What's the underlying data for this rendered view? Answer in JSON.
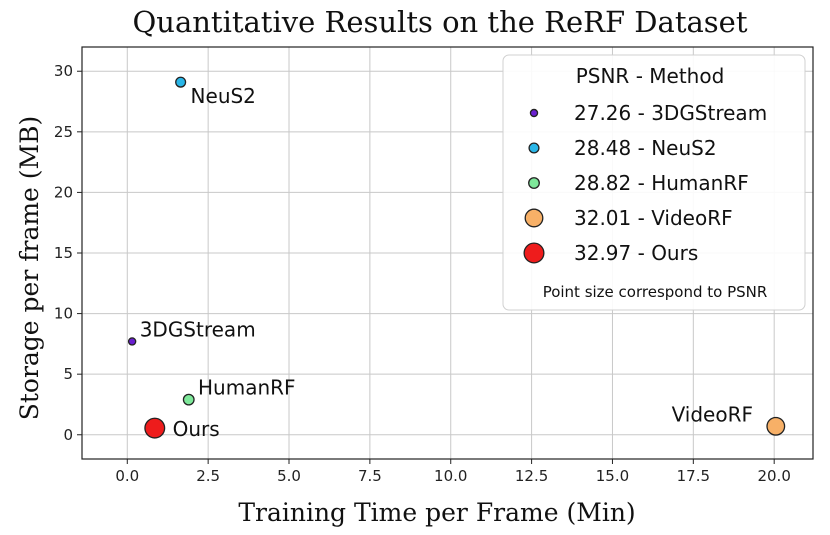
{
  "chart_data": {
    "type": "scatter",
    "title": "Quantitative Results on the ReRF Dataset",
    "xlabel": "Training Time per Frame (Min)",
    "ylabel": "Storage per frame (MB)",
    "xlim": [
      -1.4,
      21.2
    ],
    "ylim": [
      -2.0,
      32.0
    ],
    "xticks": [
      0.0,
      2.5,
      5.0,
      7.5,
      10.0,
      12.5,
      15.0,
      17.5,
      20.0
    ],
    "xtick_labels": [
      "0.0",
      "2.5",
      "5.0",
      "7.5",
      "10.0",
      "12.5",
      "15.0",
      "17.5",
      "20.0"
    ],
    "yticks": [
      0,
      5,
      10,
      15,
      20,
      25,
      30
    ],
    "ytick_labels": [
      "0",
      "5",
      "10",
      "15",
      "20",
      "25",
      "30"
    ],
    "grid": true,
    "legend_placement": "top-right",
    "legend_title": "PSNR - Method",
    "legend_note": "Point size correspond to PSNR",
    "points": [
      {
        "label": "3DGStream",
        "legend": "27.26 - 3DGStream",
        "psnr": 27.26,
        "x": 0.15,
        "y": 7.7,
        "color": "#6a1fd0",
        "label_pos": "upper-right"
      },
      {
        "label": "NeuS2",
        "legend": "28.48 - NeuS2",
        "psnr": 28.48,
        "x": 1.65,
        "y": 29.1,
        "color": "#29b6e8",
        "label_pos": "lower-right"
      },
      {
        "label": "HumanRF",
        "legend": "28.82 - HumanRF",
        "psnr": 28.82,
        "x": 1.9,
        "y": 2.9,
        "color": "#7ee89a",
        "label_pos": "upper-right"
      },
      {
        "label": "VideoRF",
        "legend": "32.01 - VideoRF",
        "psnr": 32.01,
        "x": 20.05,
        "y": 0.7,
        "color": "#f7b067",
        "label_pos": "upper-left"
      },
      {
        "label": "Ours",
        "legend": "32.97 - Ours",
        "psnr": 32.97,
        "x": 0.85,
        "y": 0.55,
        "color": "#ee1c1c",
        "label_pos": "right"
      }
    ]
  }
}
